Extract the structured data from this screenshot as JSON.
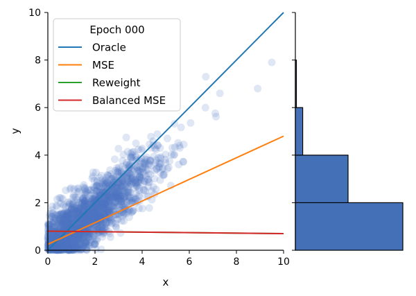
{
  "chart_data": {
    "type": "scatter",
    "xlabel": "x",
    "ylabel": "y",
    "xlim": [
      0,
      10
    ],
    "ylim": [
      0,
      10
    ],
    "xticks": [
      "0",
      "2",
      "4",
      "6",
      "8",
      "10"
    ],
    "yticks": [
      "0",
      "2",
      "4",
      "6",
      "8",
      "10"
    ],
    "legend": {
      "title": "Epoch 000",
      "placement": "top-left"
    },
    "colors": {
      "points": "#4c72c4",
      "hist_fill": "#4470b8"
    },
    "series": [
      {
        "name": "Oracle",
        "kind": "line",
        "color": "#1f77b4",
        "x": [
          0,
          10
        ],
        "y": [
          0,
          10
        ]
      },
      {
        "name": "MSE",
        "kind": "line",
        "color": "#ff7f0e",
        "x": [
          0,
          10
        ],
        "y": [
          0.25,
          4.8
        ]
      },
      {
        "name": "Reweight",
        "kind": "line",
        "color": "#2ca02c",
        "x": [
          0,
          10
        ],
        "y": [
          0.8,
          0.7
        ]
      },
      {
        "name": "Balanced MSE",
        "kind": "line",
        "color": "#d62728",
        "x": [
          0,
          10
        ],
        "y": [
          0.8,
          0.7
        ]
      }
    ],
    "scatter": {
      "description": "about 2000 samples, y roughly follows x with noise, concentrated at x 0-5",
      "n": 2000,
      "highlight_points": [
        [
          9.5,
          7.9
        ],
        [
          8.9,
          6.8
        ],
        [
          6.7,
          7.3
        ],
        [
          7.3,
          6.6
        ]
      ]
    },
    "marginal_histogram": {
      "orientation": "horizontal",
      "bins": [
        [
          0,
          2
        ],
        [
          2,
          4
        ],
        [
          4,
          6
        ],
        [
          6,
          8
        ],
        [
          8,
          10
        ]
      ],
      "counts": [
        1020,
        500,
        70,
        10,
        0
      ]
    }
  }
}
